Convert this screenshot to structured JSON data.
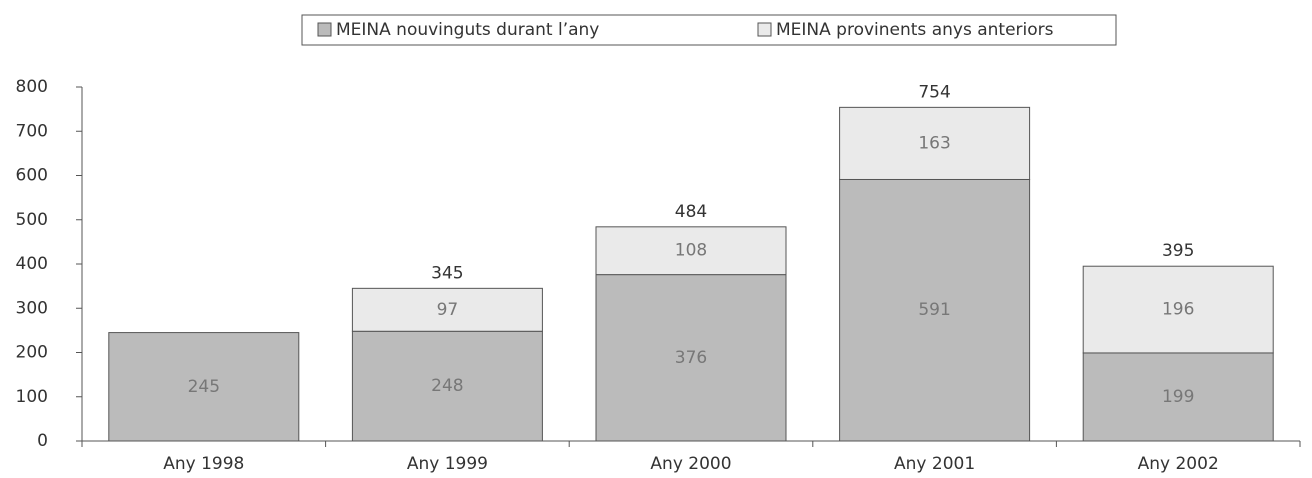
{
  "chart_data": {
    "type": "stacked_bar",
    "categories": [
      "Any 1998",
      "Any 1999",
      "Any 2000",
      "Any 2001",
      "Any 2002"
    ],
    "series": [
      {
        "name": "MEINA nouvinguts durant l’any",
        "color": "#bbbbbb",
        "values": [
          245,
          248,
          376,
          591,
          199
        ]
      },
      {
        "name": "MEINA provinents anys anteriors",
        "color": "#eaeaea",
        "values": [
          null,
          97,
          108,
          163,
          196
        ]
      }
    ],
    "total_labels": [
      null,
      "345",
      "484",
      "754",
      "395"
    ],
    "ylim": [
      0,
      800
    ],
    "yticks": [
      0,
      100,
      200,
      300,
      400,
      500,
      600,
      700,
      800
    ],
    "legend": "top"
  }
}
